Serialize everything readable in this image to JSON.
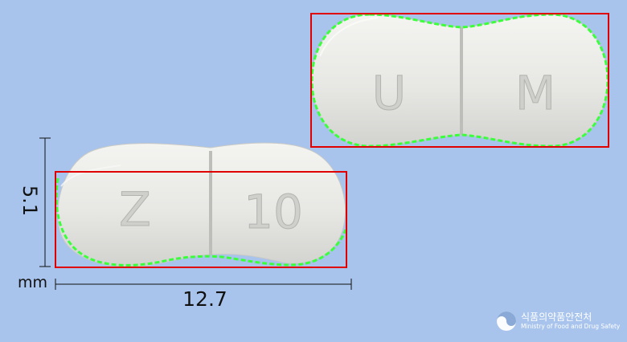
{
  "imprint_front": {
    "left": "Z",
    "right": "10"
  },
  "imprint_back": {
    "left": "U",
    "right": "M"
  },
  "dimensions": {
    "width": "12.7",
    "height": "5.1",
    "unit": "mm"
  },
  "watermark": {
    "name_ko": "식품의약품안전처",
    "name_en": "Ministry of Food and Drug Safety"
  },
  "colors": {
    "background": "#a8c4ec",
    "tablet": "#e9e9e6",
    "outline": "#3cff3c",
    "bounding_box": "#e00000"
  }
}
